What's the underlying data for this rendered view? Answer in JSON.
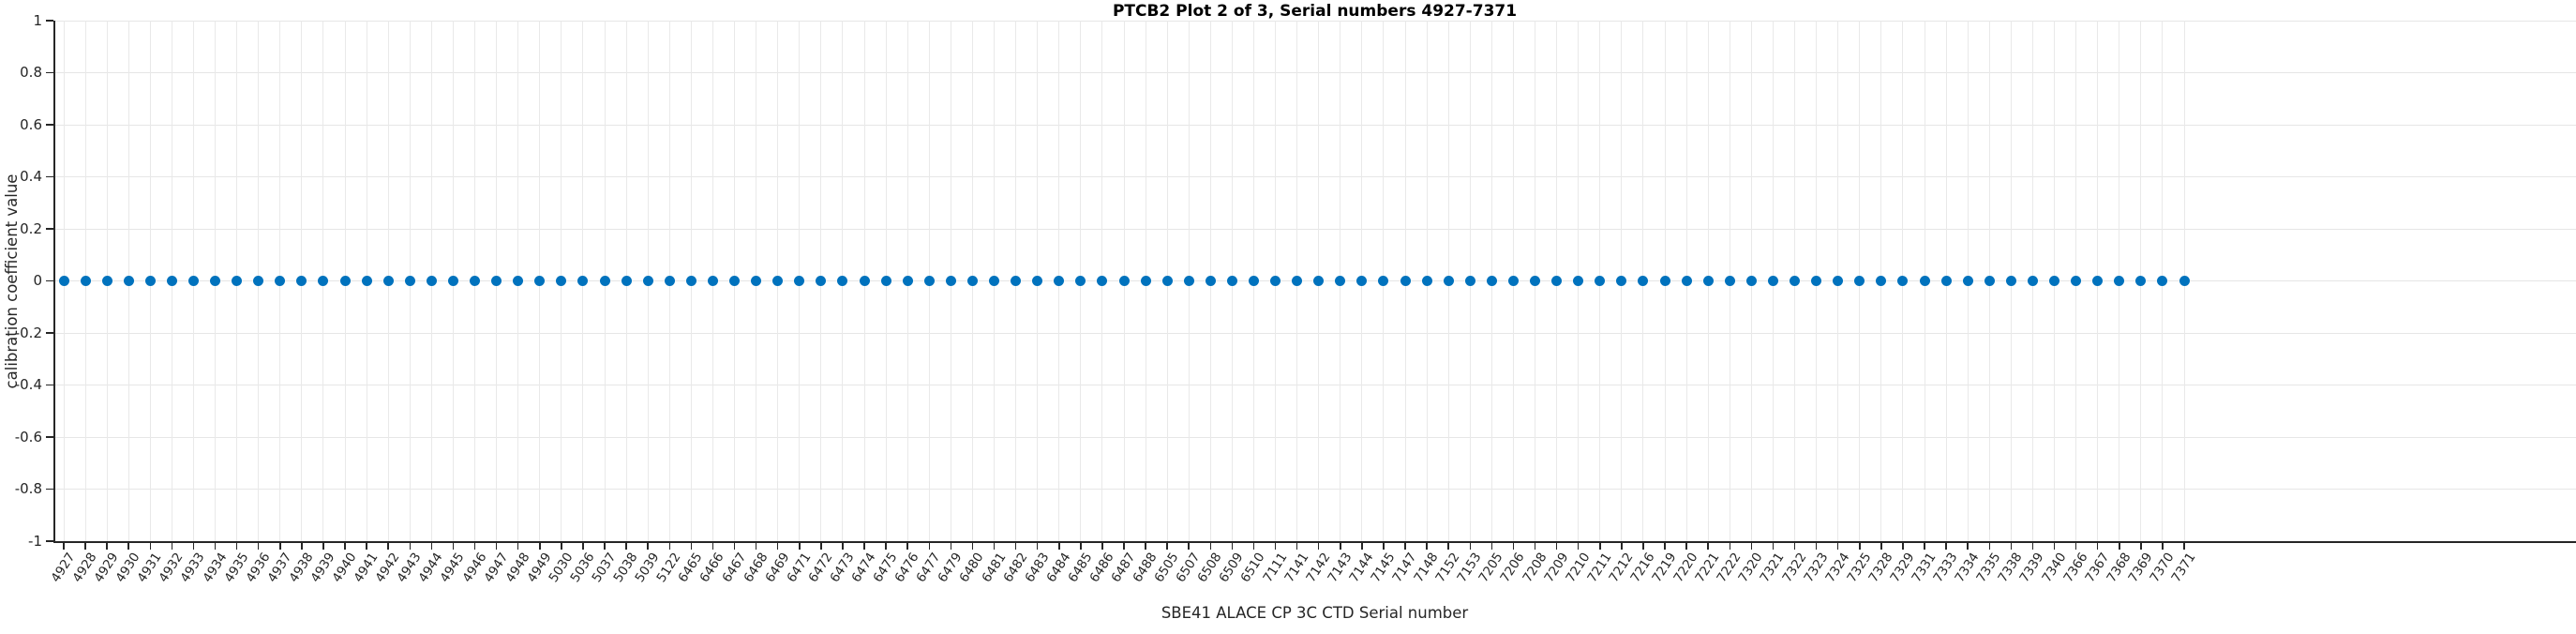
{
  "figure": {
    "title": "PTCB2 Plot 2 of 3, Serial numbers 4927-7371",
    "xlabel": "SBE41 ALACE CP 3C CTD Serial number",
    "ylabel": "calibration coefficient value"
  },
  "colors": {
    "marker": "#0072BD",
    "grid": "#e6e6e6",
    "axis": "#262626",
    "background": "#ffffff"
  },
  "chart_data": {
    "type": "scatter",
    "title": "PTCB2 Plot 2 of 3, Serial numbers 4927-7371",
    "xlabel": "SBE41 ALACE CP 3C CTD Serial number",
    "ylabel": "calibration coefficient value",
    "ylim": [
      -1,
      1
    ],
    "grid": "on",
    "legend": "none",
    "marker_color": "#0072BD",
    "y_tick_labels": [
      "1",
      "0.8",
      "0.6",
      "0.4",
      "0.2",
      "0",
      "-0.2",
      "-0.4",
      "-0.6",
      "-0.8",
      "-1"
    ],
    "y_tick_values": [
      1,
      0.8,
      0.6,
      0.4,
      0.2,
      0,
      -0.2,
      -0.4,
      -0.6,
      -0.8,
      -1
    ],
    "categories": [
      "4927",
      "4928",
      "4929",
      "4930",
      "4931",
      "4932",
      "4933",
      "4934",
      "4935",
      "4936",
      "4937",
      "4938",
      "4939",
      "4940",
      "4941",
      "4942",
      "4943",
      "4944",
      "4945",
      "4946",
      "4947",
      "4948",
      "4949",
      "5030",
      "5036",
      "5037",
      "5038",
      "5039",
      "5122",
      "6465",
      "6466",
      "6467",
      "6468",
      "6469",
      "6471",
      "6472",
      "6473",
      "6474",
      "6475",
      "6476",
      "6477",
      "6479",
      "6480",
      "6481",
      "6482",
      "6483",
      "6484",
      "6485",
      "6486",
      "6487",
      "6488",
      "6505",
      "6507",
      "6508",
      "6509",
      "6510",
      "7111",
      "7141",
      "7142",
      "7143",
      "7144",
      "7145",
      "7147",
      "7148",
      "7152",
      "7153",
      "7205",
      "7206",
      "7208",
      "7209",
      "7210",
      "7211",
      "7212",
      "7216",
      "7219",
      "7220",
      "7221",
      "7222",
      "7320",
      "7321",
      "7322",
      "7323",
      "7324",
      "7325",
      "7328",
      "7329",
      "7331",
      "7333",
      "7334",
      "7335",
      "7338",
      "7339",
      "7340",
      "7366",
      "7367",
      "7368",
      "7369",
      "7370",
      "7371"
    ],
    "series": [
      {
        "name": "calibration coefficient value",
        "values": [
          0,
          0,
          0,
          0,
          0,
          0,
          0,
          0,
          0,
          0,
          0,
          0,
          0,
          0,
          0,
          0,
          0,
          0,
          0,
          0,
          0,
          0,
          0,
          0,
          0,
          0,
          0,
          0,
          0,
          0,
          0,
          0,
          0,
          0,
          0,
          0,
          0,
          0,
          0,
          0,
          0,
          0,
          0,
          0,
          0,
          0,
          0,
          0,
          0,
          0,
          0,
          0,
          0,
          0,
          0,
          0,
          0,
          0,
          0,
          0,
          0,
          0,
          0,
          0,
          0,
          0,
          0,
          0,
          0,
          0,
          0,
          0,
          0,
          0,
          0,
          0,
          0,
          0,
          0,
          0,
          0,
          0,
          0,
          0,
          0,
          0,
          0,
          0,
          0,
          0,
          0,
          0,
          0,
          0,
          0,
          0,
          0,
          0,
          0
        ]
      }
    ]
  }
}
